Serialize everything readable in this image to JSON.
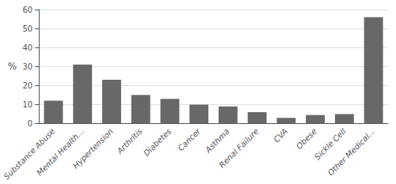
{
  "chart_data": {
    "type": "bar",
    "categories": [
      "Substance Abuse",
      "Mental Health...",
      "Hypertension",
      "Arthritis",
      "Diabetes",
      "Cancer",
      "Asthma",
      "Renal Failure",
      "CVA",
      "Obese",
      "Sickle Cell",
      "Other Medical..."
    ],
    "values": [
      12,
      31,
      23,
      15,
      13,
      10,
      9,
      6,
      3,
      4.5,
      5,
      56
    ],
    "color": "#686868",
    "ylabel": "%",
    "ylim": [
      0,
      60
    ],
    "yticks": [
      0,
      10,
      20,
      30,
      40,
      50,
      60
    ],
    "grid": true
  }
}
